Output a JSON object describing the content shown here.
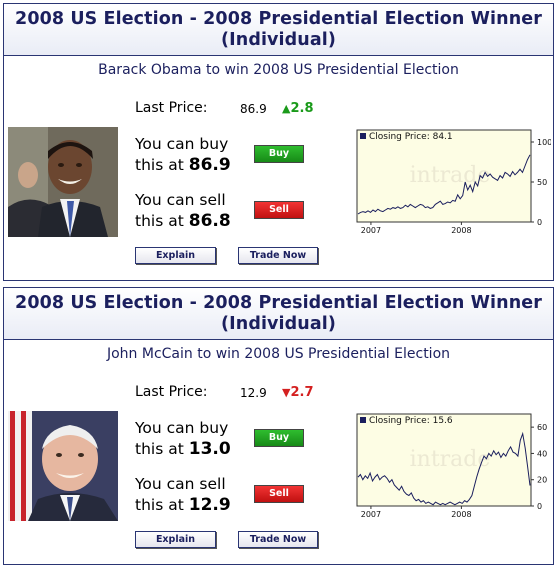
{
  "cards": [
    {
      "header": "2008 US Election - 2008 Presidential Election Winner (Individual)",
      "subtitle": "Barack Obama to win 2008 US Presidential Election",
      "last_price_label": "Last Price:",
      "last_price": "86.9",
      "change": "2.8",
      "change_direction": "up",
      "buy_line1": "You can buy",
      "buy_line2": "this at",
      "buy_price": "86.9",
      "sell_line1": "You can sell",
      "sell_line2": "this at",
      "sell_price": "86.8",
      "buy_button": "Buy",
      "sell_button": "Sell",
      "explain_button": "Explain",
      "trade_button": "Trade Now",
      "photo_icon": "candidate-portrait-obama",
      "chart_data": {
        "type": "line",
        "legend": "Closing Price: 84.1",
        "watermark": "intrade",
        "x_ticks": [
          "2007",
          "2008"
        ],
        "y_ticks": [
          0,
          50,
          100
        ],
        "ylim": [
          0,
          115
        ],
        "series": [
          {
            "values": [
              10,
              12,
              13,
              12,
              14,
              12,
              15,
              13,
              16,
              14,
              13,
              15,
              17,
              16,
              18,
              17,
              19,
              17,
              18,
              21,
              19,
              22,
              20,
              18,
              20,
              22,
              21,
              18,
              19,
              17,
              18,
              22,
              24,
              26,
              22,
              23,
              25,
              24,
              27,
              26,
              34,
              29,
              33,
              50,
              40,
              46,
              38,
              50,
              45,
              58,
              55,
              62,
              57,
              60,
              56,
              54,
              52,
              58,
              55,
              62,
              60,
              57,
              63,
              59,
              62,
              66,
              62,
              70,
              78,
              84
            ]
          }
        ]
      }
    },
    {
      "header": "2008 US Election - 2008 Presidential Election Winner (Individual)",
      "subtitle": "John McCain to win 2008 US Presidential Election",
      "last_price_label": "Last Price:",
      "last_price": "12.9",
      "change": "2.7",
      "change_direction": "down",
      "buy_line1": "You can buy",
      "buy_line2": "this at",
      "buy_price": "13.0",
      "sell_line1": "You can sell",
      "sell_line2": "this at",
      "sell_price": "12.9",
      "buy_button": "Buy",
      "sell_button": "Sell",
      "explain_button": "Explain",
      "trade_button": "Trade Now",
      "photo_icon": "candidate-portrait-mccain",
      "chart_data": {
        "type": "line",
        "legend": "Closing Price: 15.6",
        "watermark": "intrade",
        "x_ticks": [
          "2007",
          "2008"
        ],
        "y_ticks": [
          0,
          20,
          40,
          60
        ],
        "ylim": [
          0,
          70
        ],
        "series": [
          {
            "values": [
              22,
              24,
              20,
              23,
              21,
              25,
              19,
              22,
              24,
              20,
              22,
              23,
              21,
              18,
              20,
              16,
              14,
              12,
              15,
              11,
              9,
              8,
              10,
              6,
              4,
              5,
              3,
              4,
              2,
              3,
              2,
              1,
              3,
              2,
              1,
              2,
              1,
              2,
              3,
              2,
              1,
              2,
              3,
              2,
              4,
              3,
              5,
              8,
              15,
              22,
              28,
              33,
              38,
              36,
              40,
              38,
              42,
              39,
              41,
              37,
              40,
              38,
              42,
              45,
              41,
              40,
              38,
              50,
              55,
              44,
              30,
              15.6
            ]
          }
        ]
      }
    }
  ]
}
